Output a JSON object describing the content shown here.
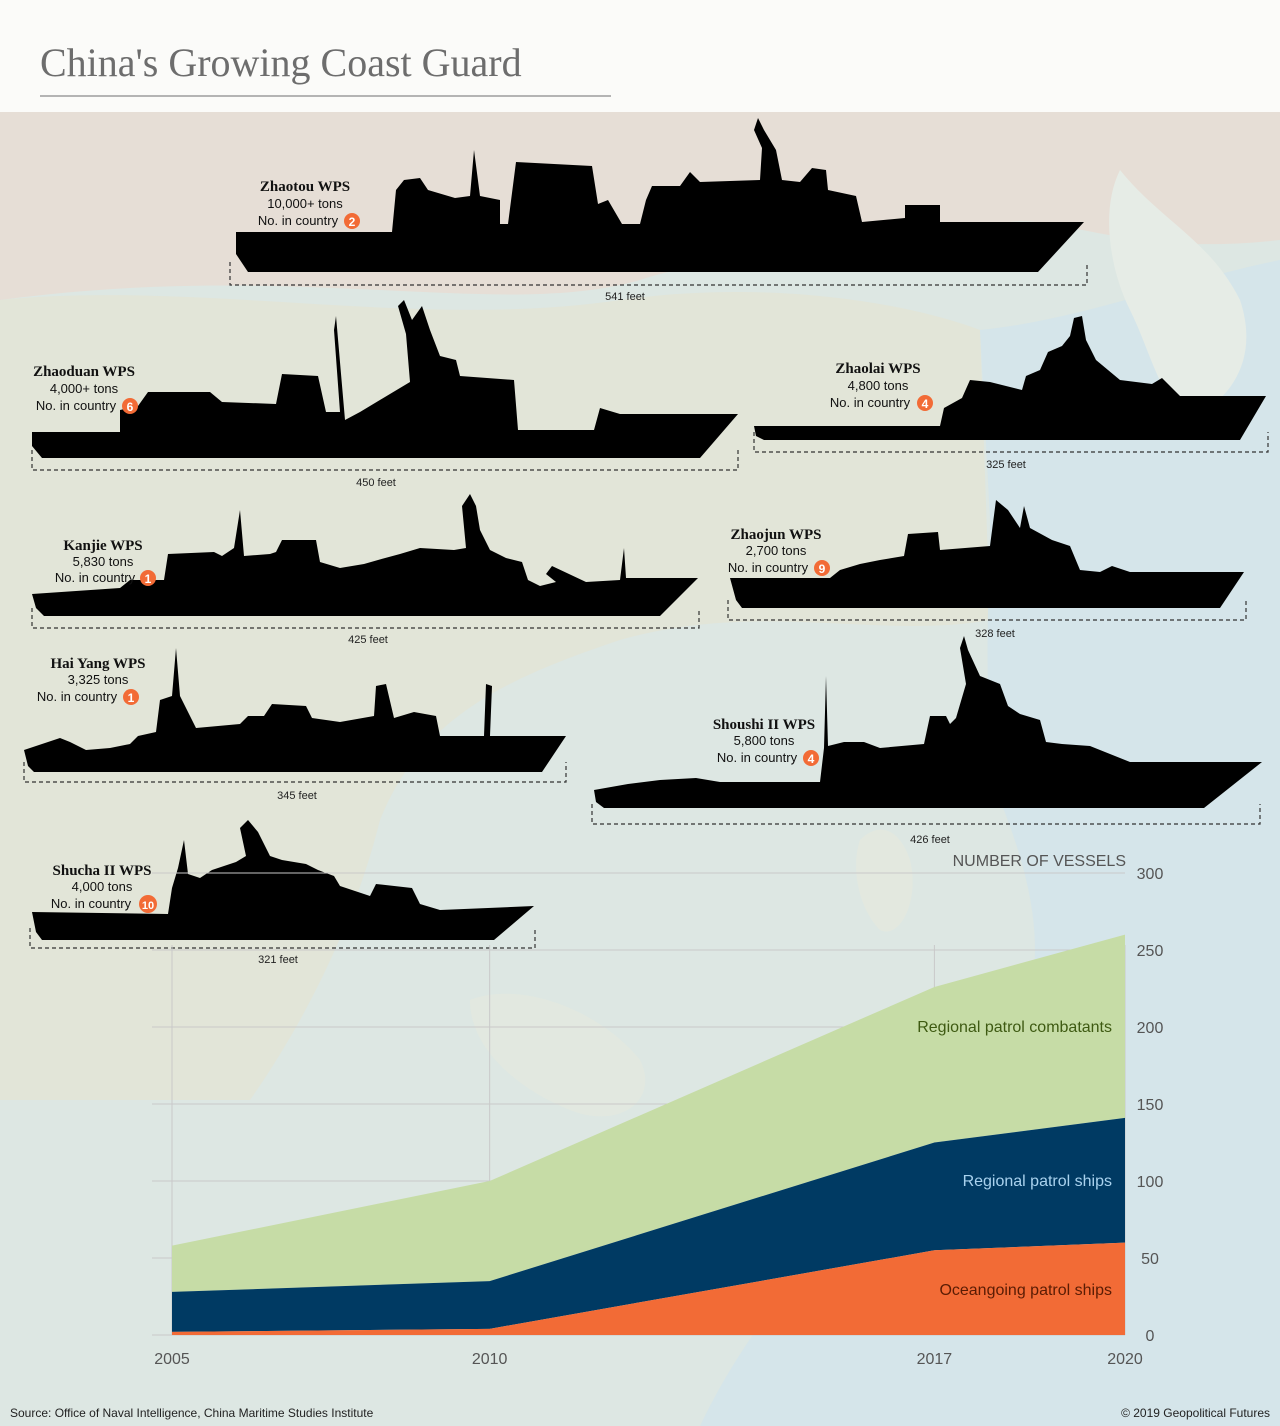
{
  "title": "China's Growing Coast Guard",
  "source": "Source: Office of Naval Intelligence, China Maritime Studies Institute",
  "copyright": "© 2019 Geopolitical Futures",
  "colors": {
    "accent": "#f26b36",
    "regional_patrol_ships": "#003a63",
    "regional_patrol_combatants": "#c6dca6",
    "oceangoing_patrol_ships": "#f26b36",
    "combatants_label": "#3e5a12",
    "ships_label": "#a9d2ee",
    "oceangoing_label": "#5a1c04",
    "silhouette": "#000000"
  },
  "ships": [
    {
      "name": "Zhaotou WPS",
      "tons": "10,000+ tons",
      "count_label": "No. in country",
      "count": "2",
      "length": "541 feet"
    },
    {
      "name": "Zhaoduan WPS",
      "tons": "4,000+ tons",
      "count_label": "No. in country",
      "count": "6",
      "length": "450 feet"
    },
    {
      "name": "Zhaolai WPS",
      "tons": "4,800 tons",
      "count_label": "No. in country",
      "count": "4",
      "length": "325 feet"
    },
    {
      "name": "Kanjie WPS",
      "tons": "5,830 tons",
      "count_label": "No. in country",
      "count": "1",
      "length": "425 feet"
    },
    {
      "name": "Zhaojun WPS",
      "tons": "2,700 tons",
      "count_label": "No. in country",
      "count": "9",
      "length": "328 feet"
    },
    {
      "name": "Hai Yang WPS",
      "tons": "3,325 tons",
      "count_label": "No. in country",
      "count": "1",
      "length": "345 feet"
    },
    {
      "name": "Shoushi II WPS",
      "tons": "5,800 tons",
      "count_label": "No. in country",
      "count": "4",
      "length": "426 feet"
    },
    {
      "name": "Shucha II WPS",
      "tons": "4,000 tons",
      "count_label": "No. in country",
      "count": "10",
      "length": "321 feet"
    }
  ],
  "chart_data": {
    "type": "area",
    "stacked": true,
    "ylabel": "NUMBER OF VESSELS",
    "x": [
      2005,
      2010,
      2017,
      2020
    ],
    "x_ticks": [
      "2005",
      "2010",
      "2017",
      "2020"
    ],
    "y_ticks": [
      "0",
      "50",
      "100",
      "150",
      "200",
      "250",
      "300"
    ],
    "ylim": [
      0,
      300
    ],
    "grid": true,
    "y_axis_side": "right",
    "series": [
      {
        "name": "Oceangoing patrol ships",
        "values": [
          2,
          4,
          55,
          60
        ]
      },
      {
        "name": "Regional patrol ships",
        "values": [
          26,
          31,
          70,
          81
        ]
      },
      {
        "name": "Regional patrol combatants",
        "values": [
          30,
          65,
          101,
          119
        ]
      }
    ]
  }
}
